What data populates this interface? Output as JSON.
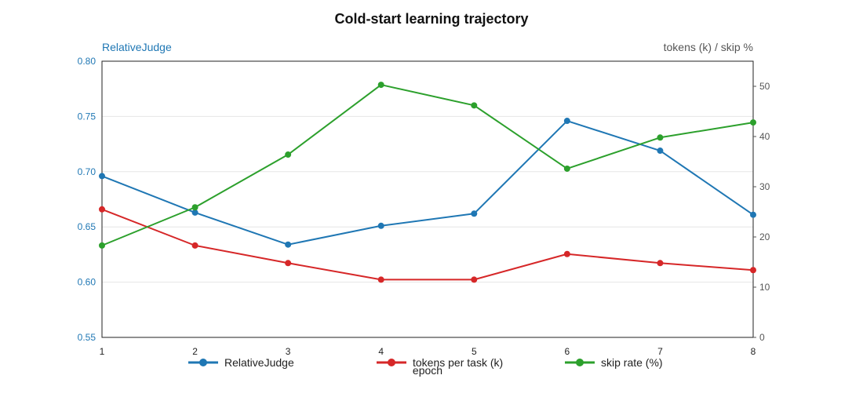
{
  "chart_data": {
    "type": "line",
    "title": "Cold-start learning trajectory",
    "xlabel": "epoch",
    "ylabel_left": "RelativeJudge",
    "ylabel_right": "tokens (k) / skip %",
    "x": [
      1,
      2,
      3,
      4,
      5,
      6,
      7,
      8
    ],
    "x_ticks": [
      "1",
      "2",
      "3",
      "4",
      "5",
      "6",
      "7",
      "8"
    ],
    "ylim_left": [
      0.55,
      0.8
    ],
    "y_ticks_left": [
      "0.55",
      "0.60",
      "0.65",
      "0.70",
      "0.75",
      "0.80"
    ],
    "ylim_right": [
      0,
      55
    ],
    "y_ticks_right": [
      "0",
      "10",
      "20",
      "30",
      "40",
      "50"
    ],
    "grid": true,
    "legend_position": "bottom",
    "series": [
      {
        "name": "RelativeJudge",
        "axis": "left",
        "color": "#1f77b4",
        "values": [
          0.696,
          0.663,
          0.634,
          0.651,
          0.662,
          0.746,
          0.719,
          0.661
        ]
      },
      {
        "name": "tokens per task (k)",
        "axis": "right",
        "color": "#d62728",
        "values": [
          25.5,
          18.3,
          14.8,
          11.5,
          11.5,
          16.6,
          14.8,
          13.4
        ]
      },
      {
        "name": "skip rate (%)",
        "axis": "right",
        "color": "#2ca02c",
        "values": [
          18.3,
          25.9,
          36.4,
          50.3,
          46.2,
          33.6,
          39.8,
          42.8
        ]
      }
    ]
  }
}
